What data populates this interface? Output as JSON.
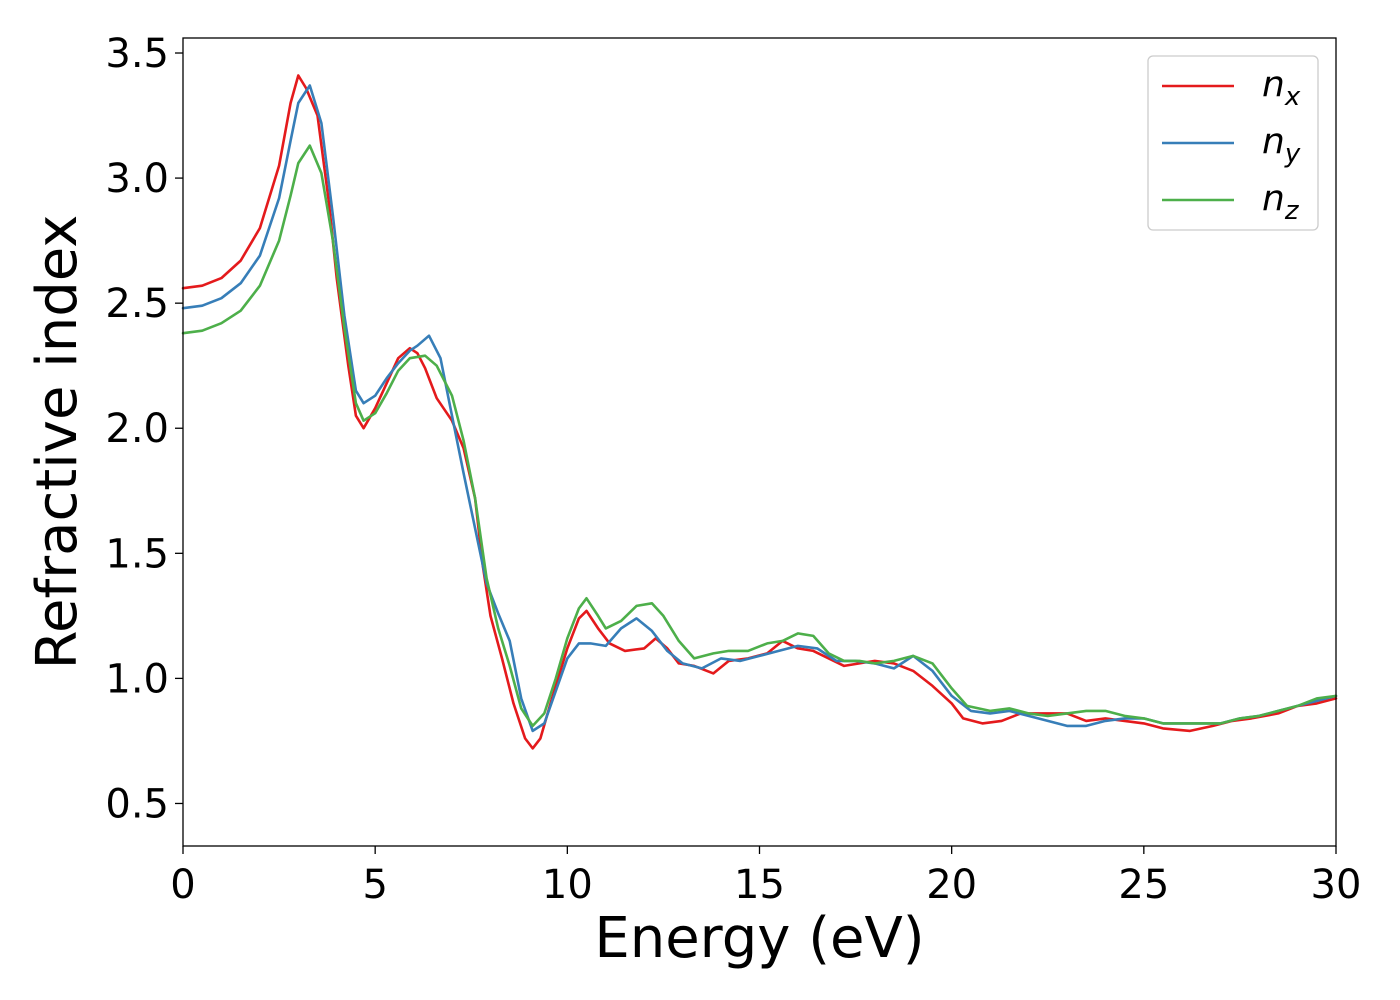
{
  "chart_data": {
    "type": "line",
    "title": "",
    "xlabel": "Energy (eV)",
    "ylabel": "Refractive index",
    "xlim": [
      0,
      30
    ],
    "ylim": [
      0.33,
      3.56
    ],
    "xticks": [
      "0",
      "5",
      "10",
      "15",
      "20",
      "25",
      "30"
    ],
    "yticks": [
      "0.5",
      "1.0",
      "1.5",
      "2.0",
      "2.5",
      "3.0",
      "3.5"
    ],
    "grid": false,
    "legend_position": "top-right",
    "series": [
      {
        "name": "n",
        "subscript": "x",
        "color": "#e41a1c",
        "points": [
          [
            0,
            2.56
          ],
          [
            0.5,
            2.57
          ],
          [
            1,
            2.6
          ],
          [
            1.5,
            2.67
          ],
          [
            2,
            2.8
          ],
          [
            2.5,
            3.05
          ],
          [
            2.8,
            3.3
          ],
          [
            3.0,
            3.41
          ],
          [
            3.2,
            3.36
          ],
          [
            3.5,
            3.25
          ],
          [
            3.8,
            2.9
          ],
          [
            4.0,
            2.6
          ],
          [
            4.3,
            2.25
          ],
          [
            4.5,
            2.05
          ],
          [
            4.7,
            2.0
          ],
          [
            5.0,
            2.08
          ],
          [
            5.3,
            2.18
          ],
          [
            5.6,
            2.28
          ],
          [
            5.9,
            2.32
          ],
          [
            6.1,
            2.3
          ],
          [
            6.3,
            2.24
          ],
          [
            6.6,
            2.12
          ],
          [
            7.0,
            2.03
          ],
          [
            7.3,
            1.92
          ],
          [
            7.6,
            1.72
          ],
          [
            7.8,
            1.45
          ],
          [
            8.0,
            1.25
          ],
          [
            8.3,
            1.08
          ],
          [
            8.6,
            0.9
          ],
          [
            8.9,
            0.76
          ],
          [
            9.1,
            0.72
          ],
          [
            9.3,
            0.76
          ],
          [
            9.6,
            0.92
          ],
          [
            10.0,
            1.12
          ],
          [
            10.3,
            1.24
          ],
          [
            10.5,
            1.27
          ],
          [
            10.8,
            1.2
          ],
          [
            11.1,
            1.14
          ],
          [
            11.5,
            1.11
          ],
          [
            12.0,
            1.12
          ],
          [
            12.3,
            1.16
          ],
          [
            12.6,
            1.12
          ],
          [
            12.9,
            1.06
          ],
          [
            13.3,
            1.05
          ],
          [
            13.8,
            1.02
          ],
          [
            14.2,
            1.07
          ],
          [
            14.7,
            1.08
          ],
          [
            15.2,
            1.1
          ],
          [
            15.6,
            1.15
          ],
          [
            16.0,
            1.12
          ],
          [
            16.4,
            1.11
          ],
          [
            16.8,
            1.08
          ],
          [
            17.2,
            1.05
          ],
          [
            17.6,
            1.06
          ],
          [
            18.0,
            1.07
          ],
          [
            18.5,
            1.06
          ],
          [
            19.0,
            1.03
          ],
          [
            19.5,
            0.97
          ],
          [
            20.0,
            0.9
          ],
          [
            20.3,
            0.84
          ],
          [
            20.8,
            0.82
          ],
          [
            21.3,
            0.83
          ],
          [
            21.8,
            0.86
          ],
          [
            22.5,
            0.86
          ],
          [
            23.0,
            0.86
          ],
          [
            23.5,
            0.83
          ],
          [
            24.0,
            0.84
          ],
          [
            24.5,
            0.83
          ],
          [
            25.0,
            0.82
          ],
          [
            25.5,
            0.8
          ],
          [
            26.2,
            0.79
          ],
          [
            26.8,
            0.81
          ],
          [
            27.3,
            0.83
          ],
          [
            27.8,
            0.84
          ],
          [
            28.5,
            0.86
          ],
          [
            29.0,
            0.89
          ],
          [
            29.5,
            0.9
          ],
          [
            30.0,
            0.92
          ]
        ]
      },
      {
        "name": "n",
        "subscript": "y",
        "color": "#377eb8",
        "points": [
          [
            0,
            2.48
          ],
          [
            0.5,
            2.49
          ],
          [
            1,
            2.52
          ],
          [
            1.5,
            2.58
          ],
          [
            2,
            2.69
          ],
          [
            2.5,
            2.92
          ],
          [
            2.8,
            3.15
          ],
          [
            3.0,
            3.3
          ],
          [
            3.3,
            3.37
          ],
          [
            3.6,
            3.22
          ],
          [
            3.9,
            2.85
          ],
          [
            4.2,
            2.45
          ],
          [
            4.5,
            2.15
          ],
          [
            4.7,
            2.1
          ],
          [
            5.0,
            2.13
          ],
          [
            5.3,
            2.2
          ],
          [
            5.6,
            2.26
          ],
          [
            5.9,
            2.31
          ],
          [
            6.1,
            2.33
          ],
          [
            6.4,
            2.37
          ],
          [
            6.7,
            2.28
          ],
          [
            7.0,
            2.05
          ],
          [
            7.3,
            1.82
          ],
          [
            7.6,
            1.6
          ],
          [
            7.9,
            1.38
          ],
          [
            8.2,
            1.26
          ],
          [
            8.5,
            1.15
          ],
          [
            8.8,
            0.92
          ],
          [
            9.1,
            0.79
          ],
          [
            9.4,
            0.82
          ],
          [
            9.7,
            0.95
          ],
          [
            10.0,
            1.08
          ],
          [
            10.3,
            1.14
          ],
          [
            10.6,
            1.14
          ],
          [
            11.0,
            1.13
          ],
          [
            11.4,
            1.2
          ],
          [
            11.8,
            1.24
          ],
          [
            12.2,
            1.19
          ],
          [
            12.6,
            1.11
          ],
          [
            13.0,
            1.06
          ],
          [
            13.5,
            1.04
          ],
          [
            14.0,
            1.08
          ],
          [
            14.5,
            1.07
          ],
          [
            15.0,
            1.09
          ],
          [
            15.5,
            1.11
          ],
          [
            16.0,
            1.13
          ],
          [
            16.5,
            1.12
          ],
          [
            17.0,
            1.07
          ],
          [
            17.5,
            1.07
          ],
          [
            18.0,
            1.06
          ],
          [
            18.5,
            1.04
          ],
          [
            19.0,
            1.09
          ],
          [
            19.5,
            1.03
          ],
          [
            20.0,
            0.93
          ],
          [
            20.5,
            0.87
          ],
          [
            21.0,
            0.86
          ],
          [
            21.5,
            0.87
          ],
          [
            22.0,
            0.85
          ],
          [
            22.5,
            0.83
          ],
          [
            23.0,
            0.81
          ],
          [
            23.5,
            0.81
          ],
          [
            24.0,
            0.83
          ],
          [
            24.5,
            0.84
          ],
          [
            25.0,
            0.84
          ],
          [
            25.5,
            0.82
          ],
          [
            26.0,
            0.82
          ],
          [
            26.5,
            0.82
          ],
          [
            27.0,
            0.82
          ],
          [
            27.5,
            0.84
          ],
          [
            28.0,
            0.85
          ],
          [
            28.5,
            0.87
          ],
          [
            29.0,
            0.89
          ],
          [
            29.5,
            0.91
          ],
          [
            30.0,
            0.93
          ]
        ]
      },
      {
        "name": "n",
        "subscript": "z",
        "color": "#4daf4a",
        "points": [
          [
            0,
            2.38
          ],
          [
            0.5,
            2.39
          ],
          [
            1,
            2.42
          ],
          [
            1.5,
            2.47
          ],
          [
            2,
            2.57
          ],
          [
            2.5,
            2.75
          ],
          [
            2.8,
            2.93
          ],
          [
            3.0,
            3.06
          ],
          [
            3.3,
            3.13
          ],
          [
            3.6,
            3.02
          ],
          [
            3.9,
            2.75
          ],
          [
            4.2,
            2.4
          ],
          [
            4.5,
            2.1
          ],
          [
            4.7,
            2.03
          ],
          [
            5.0,
            2.06
          ],
          [
            5.3,
            2.14
          ],
          [
            5.6,
            2.23
          ],
          [
            5.9,
            2.28
          ],
          [
            6.3,
            2.29
          ],
          [
            6.6,
            2.25
          ],
          [
            7.0,
            2.13
          ],
          [
            7.3,
            1.95
          ],
          [
            7.6,
            1.72
          ],
          [
            7.9,
            1.4
          ],
          [
            8.2,
            1.2
          ],
          [
            8.5,
            1.05
          ],
          [
            8.8,
            0.88
          ],
          [
            9.1,
            0.81
          ],
          [
            9.4,
            0.86
          ],
          [
            9.7,
            1.0
          ],
          [
            10.0,
            1.16
          ],
          [
            10.3,
            1.28
          ],
          [
            10.5,
            1.32
          ],
          [
            10.8,
            1.25
          ],
          [
            11.0,
            1.2
          ],
          [
            11.4,
            1.23
          ],
          [
            11.8,
            1.29
          ],
          [
            12.2,
            1.3
          ],
          [
            12.5,
            1.25
          ],
          [
            12.9,
            1.15
          ],
          [
            13.3,
            1.08
          ],
          [
            13.8,
            1.1
          ],
          [
            14.2,
            1.11
          ],
          [
            14.7,
            1.11
          ],
          [
            15.2,
            1.14
          ],
          [
            15.6,
            1.15
          ],
          [
            16.0,
            1.18
          ],
          [
            16.4,
            1.17
          ],
          [
            16.8,
            1.1
          ],
          [
            17.2,
            1.07
          ],
          [
            17.6,
            1.07
          ],
          [
            18.0,
            1.06
          ],
          [
            18.5,
            1.07
          ],
          [
            19.0,
            1.09
          ],
          [
            19.5,
            1.06
          ],
          [
            20.0,
            0.96
          ],
          [
            20.4,
            0.89
          ],
          [
            21.0,
            0.87
          ],
          [
            21.5,
            0.88
          ],
          [
            22.0,
            0.86
          ],
          [
            22.5,
            0.85
          ],
          [
            23.0,
            0.86
          ],
          [
            23.5,
            0.87
          ],
          [
            24.0,
            0.87
          ],
          [
            24.5,
            0.85
          ],
          [
            25.0,
            0.84
          ],
          [
            25.5,
            0.82
          ],
          [
            26.0,
            0.82
          ],
          [
            26.5,
            0.82
          ],
          [
            27.0,
            0.82
          ],
          [
            27.5,
            0.84
          ],
          [
            28.0,
            0.85
          ],
          [
            28.5,
            0.87
          ],
          [
            29.0,
            0.89
          ],
          [
            29.5,
            0.92
          ],
          [
            30.0,
            0.93
          ]
        ]
      }
    ]
  }
}
